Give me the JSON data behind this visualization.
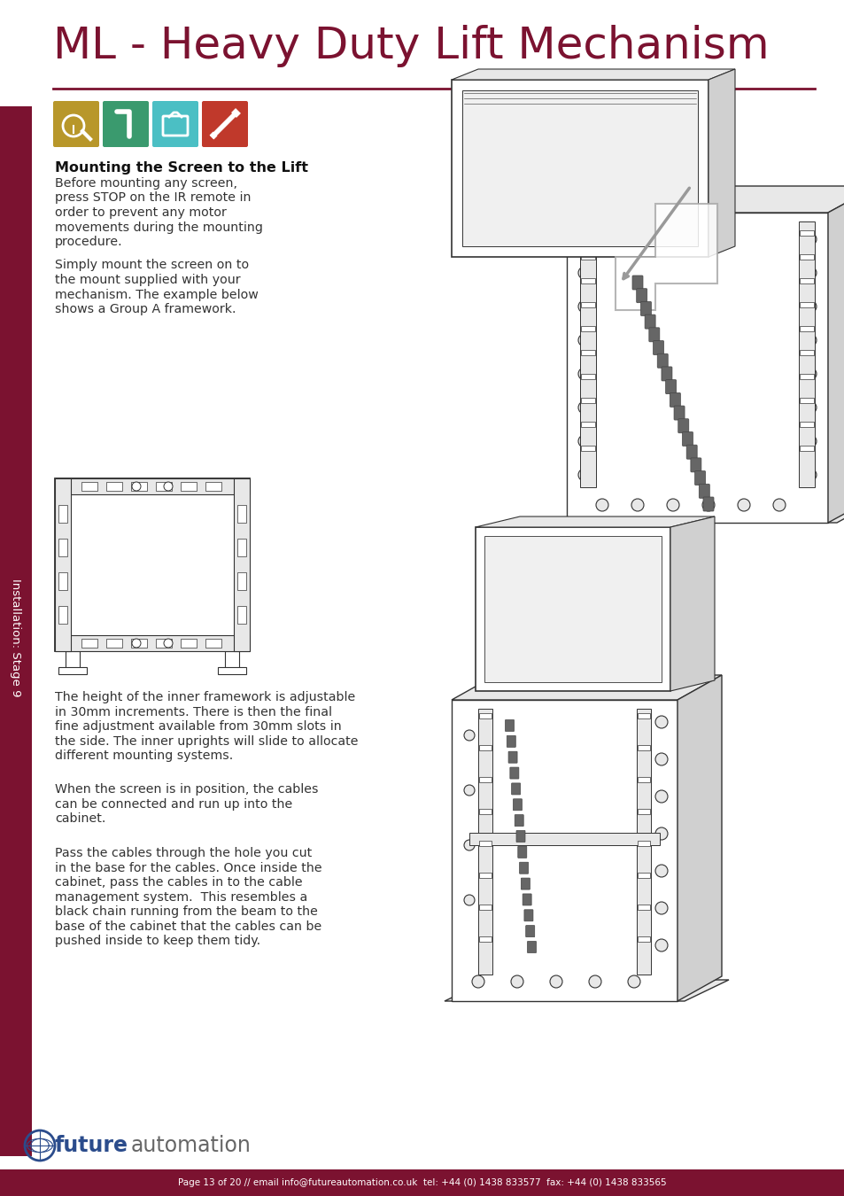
{
  "title": "ML - Heavy Duty Lift Mechanism",
  "title_color": "#7B1230",
  "sidebar_color": "#7B1230",
  "sidebar_text": "Installation: Stage 9",
  "separator_color": "#7B1230",
  "bg_color": "#FFFFFF",
  "icon_colors": [
    "#B8972A",
    "#3A9A6E",
    "#4BBFC4",
    "#C0392B"
  ],
  "section_heading": "Mounting the Screen to the Lift",
  "body_text_1a": "Before mounting any screen,",
  "body_text_1b": "press STOP on the IR remote in",
  "body_text_1c": "order to prevent any motor",
  "body_text_1d": "movements during the mounting",
  "body_text_1e": "procedure.",
  "body_text_2a": "Simply mount the screen on to",
  "body_text_2b": "the mount supplied with your",
  "body_text_2c": "mechanism. The example below",
  "body_text_2d": "shows a Group A framework.",
  "body_text_3a": "The height of the inner framework is adjustable",
  "body_text_3b": "in 30mm increments. There is then the final",
  "body_text_3c": "fine adjustment available from 30mm slots in",
  "body_text_3d": "the side. The inner uprights will slide to allocate",
  "body_text_3e": "different mounting systems.",
  "body_text_4a": "When the screen is in position, the cables",
  "body_text_4b": "can be connected and run up into the",
  "body_text_4c": "cabinet.",
  "body_text_5a": "Pass the cables through the hole you cut",
  "body_text_5b": "in the base for the cables. Once inside the",
  "body_text_5c": "cabinet, pass the cables in to the cable",
  "body_text_5d": "management system.  This resembles a",
  "body_text_5e": "black chain running from the beam to the",
  "body_text_5f": "base of the cabinet that the cables can be",
  "body_text_5g": "pushed inside to keep them tidy.",
  "footer_text": "Page 13 of 20 // email info@futureautomation.co.uk  tel: +44 (0) 1438 833577  fax: +44 (0) 1438 833565",
  "footer_bg": "#7B1230",
  "footer_text_color": "#FFFFFF",
  "logo_text_future": "future",
  "logo_text_automation": "automation",
  "line_color": "#444444",
  "light_gray": "#e8e8e8",
  "mid_gray": "#d0d0d0"
}
